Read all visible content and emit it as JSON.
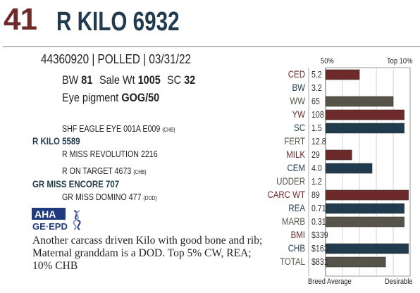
{
  "header": {
    "lot": "41",
    "name": "R KILO 6932"
  },
  "registration": "44360920 | POLLED | 03/31/22",
  "stats": {
    "bw_label": "BW",
    "bw": "81",
    "sale_wt_label": "Sale Wt",
    "sale_wt": "1005",
    "sc_label": "SC",
    "sc": "32",
    "eye_label": "Eye pigment",
    "eye": "GOG/50"
  },
  "pedigree": [
    {
      "text": "SHF EAGLE EYE 001A E009",
      "tag": "{CHB}"
    },
    {
      "text": "R KILO 5589",
      "tag": ""
    },
    {
      "text": "R MISS REVOLUTION 2216",
      "tag": ""
    },
    {
      "text": "R ON TARGET 4673",
      "tag": "{CHB}"
    },
    {
      "text": "GR MISS ENCORE 707",
      "tag": ""
    },
    {
      "text": "GR MISS DOMINO 477",
      "tag": "{DOD}"
    }
  ],
  "logo": {
    "line1": "AHA",
    "line2": "GE·EPD"
  },
  "comment": "Another carcass driven Kilo with good bone and rib; Maternal granddam is a DOD. Top 5% CW, REA; 10% CHB",
  "colors": {
    "red": "#6e2a2a",
    "navy": "#1f3b4d",
    "olive": "#565449"
  },
  "chart_data": {
    "type": "bar",
    "top_labels": [
      "50%",
      "Top 10%"
    ],
    "bottom_labels": [
      "Breed Average",
      "Desirable"
    ],
    "scale_note": "bar length expressed as fraction of chart width (0 = breed average, 1 = desirable edge)",
    "rows": [
      {
        "trait": "CED",
        "value": "5.2",
        "level": 0.4,
        "color": "red",
        "bar": true
      },
      {
        "trait": "BW",
        "value": "3.2",
        "level": 0,
        "color": "navy",
        "bar": false
      },
      {
        "trait": "WW",
        "value": "65",
        "level": 0.8,
        "color": "olive",
        "bar": true
      },
      {
        "trait": "YW",
        "value": "108",
        "level": 0.93,
        "color": "red",
        "bar": true
      },
      {
        "trait": "SC",
        "value": "1.5",
        "level": 0.93,
        "color": "navy",
        "bar": true
      },
      {
        "trait": "FERT",
        "value": "12.8",
        "level": 0,
        "color": "olive",
        "bar": false
      },
      {
        "trait": "MILK",
        "value": "29",
        "level": 0.31,
        "color": "red",
        "bar": true
      },
      {
        "trait": "CEM",
        "value": "4.0",
        "level": 0.55,
        "color": "navy",
        "bar": true
      },
      {
        "trait": "UDDER",
        "value": "1.2",
        "level": 0,
        "color": "olive",
        "bar": false
      },
      {
        "trait": "CARC WT",
        "value": "89",
        "level": 0.98,
        "color": "red",
        "bar": true
      },
      {
        "trait": "REA",
        "value": "0.71",
        "level": 0.93,
        "color": "navy",
        "bar": true
      },
      {
        "trait": "MARB",
        "value": "0.31",
        "level": 0.93,
        "color": "olive",
        "bar": true
      },
      {
        "trait": "BMI",
        "value": "$339",
        "level": 0,
        "color": "red",
        "bar": false
      },
      {
        "trait": "CHB",
        "value": "$163",
        "level": 0.98,
        "color": "navy",
        "bar": true
      },
      {
        "trait": "TOTAL",
        "value": "$831",
        "level": 0.71,
        "color": "olive",
        "bar": true
      }
    ]
  }
}
